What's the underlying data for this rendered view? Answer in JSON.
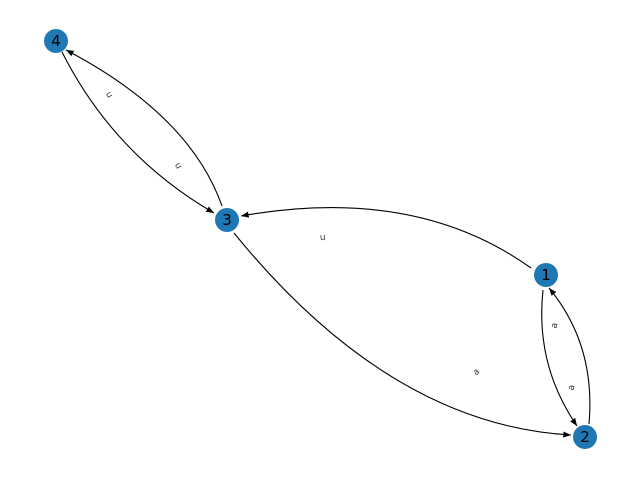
{
  "graph": {
    "node_color": "#1f77b4",
    "edge_color": "#000000",
    "nodes": [
      {
        "id": "1",
        "label": "1"
      },
      {
        "id": "2",
        "label": "2"
      },
      {
        "id": "3",
        "label": "3"
      },
      {
        "id": "4",
        "label": "4"
      }
    ],
    "edges": [
      {
        "from": "4",
        "to": "3",
        "label": "u"
      },
      {
        "from": "3",
        "to": "4",
        "label": "u"
      },
      {
        "from": "1",
        "to": "3",
        "label": "u"
      },
      {
        "from": "3",
        "to": "2",
        "label": "a"
      },
      {
        "from": "1",
        "to": "2",
        "label": "a"
      },
      {
        "from": "2",
        "to": "1",
        "label": "a"
      }
    ]
  }
}
